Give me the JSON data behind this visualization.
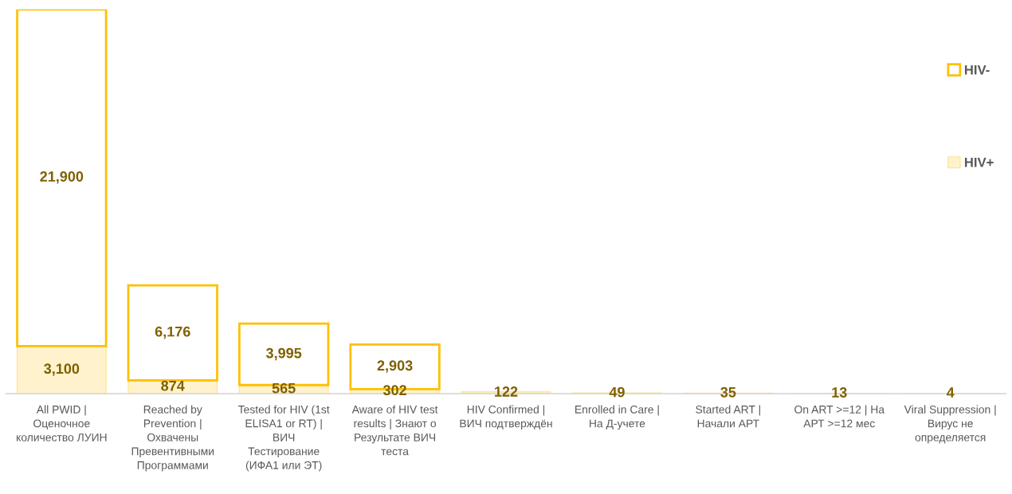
{
  "chart_data": {
    "type": "bar",
    "stacked": true,
    "legend": "right",
    "categories": [
      "All PWID | Оценочное количество ЛУИН",
      "Reached by Prevention | Охвачены Превентивными Программами",
      "Tested for HIV (1st ELISA1 or RT) | ВИЧ Тестирование (ИФА1 или ЭТ)",
      "Aware of HIV test results | Знают о Результате ВИЧ теста",
      "HIV Confirmed | ВИЧ подтверждён",
      "Enrolled in Care | На Д-учете",
      "Started ART | Начали АРТ",
      "On ART >=12 | На АРТ >=12 мес",
      "Viral Suppression | Вирус не определяется"
    ],
    "series": [
      {
        "name": "HIV+",
        "color": "#fff2cc",
        "values": [
          3100,
          874,
          565,
          302,
          122,
          49,
          35,
          13,
          4
        ],
        "value_labels": [
          "3,100",
          "874",
          "565",
          "302",
          "122",
          "49",
          "35",
          "13",
          "4"
        ]
      },
      {
        "name": "HIV-",
        "color": "#ffc000",
        "values": [
          21900,
          6176,
          3995,
          2903,
          null,
          null,
          null,
          null,
          null
        ],
        "value_labels": [
          "21,900",
          "6,176",
          "3,995",
          "2,903",
          null,
          null,
          null,
          null,
          null
        ]
      }
    ]
  }
}
